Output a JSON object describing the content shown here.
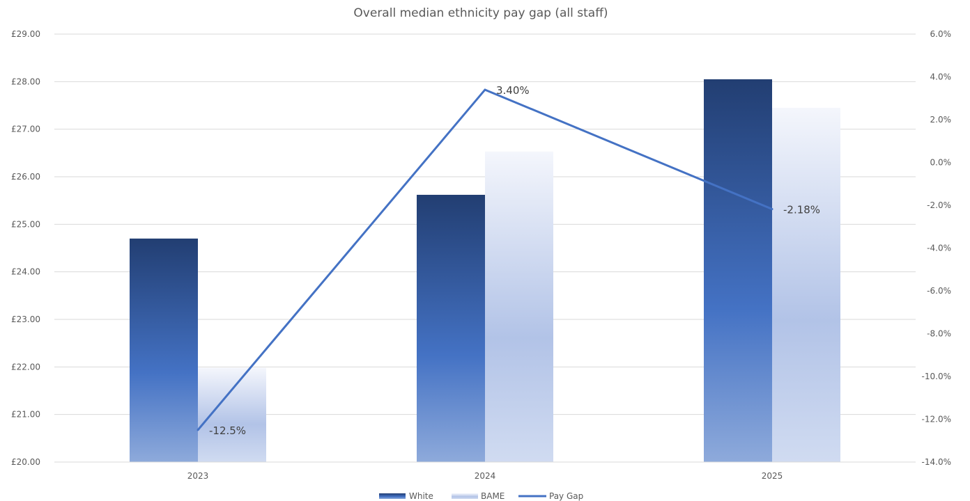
{
  "chart_data": {
    "type": "bar",
    "title": "Overall median ethnicity pay gap (all staff)",
    "categories": [
      "2023",
      "2024",
      "2025"
    ],
    "series": [
      {
        "name": "White",
        "type": "bar",
        "axis": "left",
        "values": [
          24.7,
          25.62,
          28.05
        ],
        "color": "#2e4f8f"
      },
      {
        "name": "BAME",
        "type": "bar",
        "axis": "left",
        "values": [
          21.98,
          26.53,
          27.45
        ],
        "color": "#a9bde6"
      },
      {
        "name": "Pay Gap",
        "type": "line",
        "axis": "right",
        "values": [
          -12.5,
          3.4,
          -2.18
        ],
        "labels": [
          "-12.5%",
          "3.40%",
          "-2.18%"
        ],
        "color": "#4472c4"
      }
    ],
    "y_left": {
      "min": 20,
      "max": 29,
      "ticks": [
        "£20.00",
        "£21.00",
        "£22.00",
        "£23.00",
        "£24.00",
        "£25.00",
        "£26.00",
        "£27.00",
        "£28.00",
        "£29.00"
      ]
    },
    "y_right": {
      "min": -14,
      "max": 6,
      "ticks": [
        "-14.0%",
        "-12.0%",
        "-10.0%",
        "-8.0%",
        "-6.0%",
        "-4.0%",
        "-2.0%",
        "0.0%",
        "2.0%",
        "4.0%",
        "6.0%"
      ]
    },
    "grid": true,
    "legend": "bottom"
  }
}
